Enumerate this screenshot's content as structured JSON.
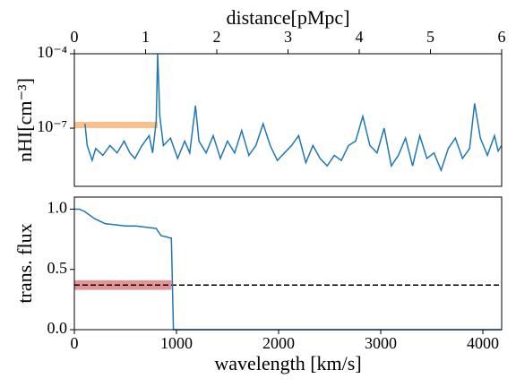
{
  "chart_data": [
    {
      "type": "line",
      "xlabel": "distance[pMpc]",
      "ylabel": "nHI[cm⁻³]",
      "xaxis": "top",
      "yscale": "log",
      "xlim": [
        0,
        6
      ],
      "xticks": [
        0,
        1,
        2,
        3,
        4,
        5,
        6
      ],
      "ylim": [
        4.5e-10,
        0.0001
      ],
      "yticks": [
        {
          "value": 0.0001,
          "label": "10⁻⁴"
        },
        {
          "value": 1e-07,
          "label": "10⁻⁷"
        }
      ],
      "color": "#1f77b4",
      "x": [
        0.15,
        0.18,
        0.25,
        0.3,
        0.4,
        0.5,
        0.6,
        0.7,
        0.78,
        0.85,
        0.95,
        1.05,
        1.1,
        1.15,
        1.17,
        1.2,
        1.25,
        1.35,
        1.45,
        1.55,
        1.62,
        1.7,
        1.75,
        1.85,
        1.95,
        2.05,
        2.15,
        2.25,
        2.35,
        2.45,
        2.55,
        2.65,
        2.75,
        2.85,
        2.95,
        3.05,
        3.15,
        3.25,
        3.35,
        3.45,
        3.55,
        3.65,
        3.75,
        3.85,
        3.95,
        4.05,
        4.15,
        4.25,
        4.35,
        4.45,
        4.55,
        4.65,
        4.75,
        4.85,
        4.95,
        5.05,
        5.15,
        5.25,
        5.35,
        5.45,
        5.55,
        5.62,
        5.7,
        5.8,
        5.9,
        5.95,
        6.0
      ],
      "values": [
        1.5e-07,
        2e-08,
        5e-09,
        1.5e-08,
        8e-09,
        2e-08,
        1e-08,
        3e-08,
        1e-08,
        6e-09,
        2e-08,
        5e-08,
        1e-08,
        2e-07,
        0.0001,
        3e-07,
        2e-08,
        4e-08,
        6e-09,
        3e-08,
        1e-08,
        8e-07,
        3e-08,
        1e-08,
        5e-08,
        6e-09,
        3e-08,
        1e-08,
        8e-08,
        8e-09,
        2e-08,
        1.5e-07,
        2e-08,
        5e-09,
        1e-08,
        2e-08,
        5e-08,
        4e-09,
        2e-08,
        6e-09,
        3e-09,
        8e-09,
        5e-09,
        2e-08,
        3e-08,
        3e-07,
        2e-08,
        1e-08,
        1e-07,
        3e-09,
        8e-09,
        4e-08,
        3e-09,
        5e-08,
        6e-09,
        1e-08,
        2e-09,
        1.5e-08,
        4e-08,
        6e-09,
        1.5e-08,
        1e-06,
        4e-08,
        8e-09,
        5e-08,
        1.2e-08,
        2e-08
      ],
      "band": {
        "x": [
          0,
          1.17
        ],
        "y": [
          1e-07,
          1.8e-07
        ],
        "color": "#f9b97d"
      }
    },
    {
      "type": "line",
      "xlabel": "wavelength [km/s]",
      "ylabel": "trans. flux",
      "xaxis": "bottom",
      "xlim": [
        0,
        4184
      ],
      "xticks": [
        0,
        1000,
        2000,
        3000,
        4000
      ],
      "ylim": [
        0,
        1.1
      ],
      "yticks": [
        {
          "value": 0,
          "label": "0.0"
        },
        0.5,
        {
          "value": 1,
          "label": "1.0"
        }
      ],
      "color": "#1f77b4",
      "x": [
        0,
        50,
        100,
        200,
        300,
        400,
        500,
        600,
        700,
        800,
        850,
        900,
        940,
        950,
        970,
        1000,
        2000,
        3000,
        4184
      ],
      "values": [
        1.0,
        1.0,
        0.98,
        0.92,
        0.88,
        0.87,
        0.86,
        0.86,
        0.85,
        0.84,
        0.78,
        0.77,
        0.76,
        0.76,
        0,
        0,
        0,
        0,
        0
      ],
      "band": {
        "x": [
          0,
          950
        ],
        "y": [
          0.33,
          0.41
        ],
        "color": "#e0868a"
      },
      "hline": {
        "value": 0.37,
        "color": "#000000",
        "style": "dashed"
      }
    }
  ]
}
